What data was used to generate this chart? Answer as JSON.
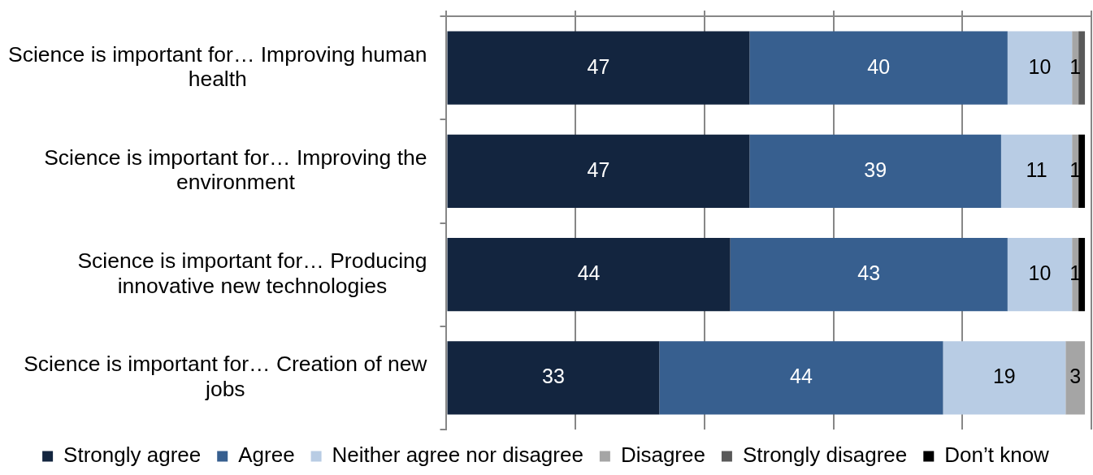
{
  "chart_data": {
    "type": "bar",
    "orientation": "horizontal",
    "stacked": true,
    "categories": [
      "Science is important for… Improving human health",
      "Science is important for… Improving the environment",
      "Science is important for… Producing innovative new technologies",
      "Science is important for… Creation of new jobs"
    ],
    "series": [
      {
        "name": "Strongly agree",
        "color": "#13253f",
        "values": [
          47,
          47,
          44,
          33
        ],
        "value_labels": [
          "47",
          "47",
          "44",
          "33"
        ]
      },
      {
        "name": "Agree",
        "color": "#375f8f",
        "values": [
          40,
          39,
          43,
          44
        ],
        "value_labels": [
          "40",
          "39",
          "43",
          "44"
        ]
      },
      {
        "name": "Neither agree nor disagree",
        "color": "#b8cce4",
        "values": [
          10,
          11,
          10,
          19
        ],
        "value_labels": [
          "10",
          "11",
          "10",
          "19"
        ]
      },
      {
        "name": "Disagree",
        "color": "#a5a5a5",
        "values": [
          1,
          1,
          1,
          3
        ],
        "value_labels": [
          "1",
          "1",
          "1",
          "3"
        ]
      },
      {
        "name": "Strongly disagree",
        "color": "#595959",
        "values": [
          1,
          null,
          null,
          null
        ],
        "value_labels": [
          null,
          null,
          null,
          null
        ]
      },
      {
        "name": "Don’t know",
        "color": "#000000",
        "values": [
          null,
          1,
          1,
          null
        ],
        "value_labels": [
          null,
          null,
          null,
          null
        ]
      }
    ],
    "xlim": [
      0,
      100
    ],
    "xticks": [
      {
        "value": 0,
        "label": null
      },
      {
        "value": 20,
        "label": null
      },
      {
        "value": 40,
        "label": null
      },
      {
        "value": 60,
        "label": null
      },
      {
        "value": 80,
        "label": null
      },
      {
        "value": 100,
        "label": null
      }
    ],
    "grid": "x",
    "legend": "bottom",
    "tick_labels": "y"
  }
}
